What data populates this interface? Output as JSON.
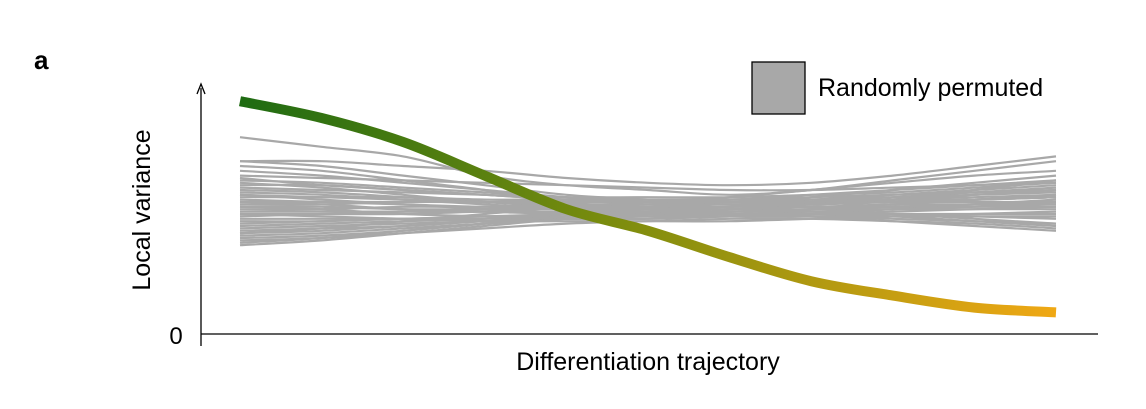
{
  "chart_data": {
    "type": "line",
    "panel_label": "a",
    "xlabel": "Differentiation trajectory",
    "ylabel": "Local variance",
    "y_ticks": [
      {
        "value": 0,
        "label": "0"
      }
    ],
    "xlim": [
      0,
      1
    ],
    "ylim": [
      0,
      1.0
    ],
    "grid": false,
    "legend": {
      "position": "top-right",
      "entries": [
        {
          "label": "Randomly permuted",
          "color": "#a8a8a8"
        }
      ]
    },
    "colors": {
      "permuted": "#a8a8a8",
      "gradient_start": "#1e6b12",
      "gradient_mid": "#7a8c0e",
      "gradient_end": "#f0a814"
    },
    "x": [
      0,
      0.1,
      0.2,
      0.3,
      0.4,
      0.5,
      0.6,
      0.7,
      0.8,
      0.9,
      1.0
    ],
    "series": [
      {
        "role": "observed",
        "values": [
          0.97,
          0.9,
          0.8,
          0.66,
          0.52,
          0.43,
          0.32,
          0.22,
          0.16,
          0.11,
          0.09
        ]
      }
    ],
    "permuted_series": [
      [
        0.82,
        0.78,
        0.74,
        0.66,
        0.62,
        0.6,
        0.58,
        0.6,
        0.64,
        0.68,
        0.72
      ],
      [
        0.72,
        0.72,
        0.7,
        0.68,
        0.65,
        0.63,
        0.62,
        0.63,
        0.66,
        0.7,
        0.74
      ],
      [
        0.72,
        0.7,
        0.66,
        0.62,
        0.58,
        0.56,
        0.55,
        0.57,
        0.6,
        0.63,
        0.66
      ],
      [
        0.7,
        0.68,
        0.64,
        0.6,
        0.55,
        0.52,
        0.5,
        0.52,
        0.56,
        0.6,
        0.64
      ],
      [
        0.68,
        0.66,
        0.63,
        0.6,
        0.57,
        0.55,
        0.55,
        0.56,
        0.58,
        0.6,
        0.62
      ],
      [
        0.66,
        0.65,
        0.64,
        0.63,
        0.62,
        0.61,
        0.6,
        0.6,
        0.61,
        0.62,
        0.63
      ],
      [
        0.65,
        0.62,
        0.6,
        0.58,
        0.56,
        0.55,
        0.54,
        0.55,
        0.56,
        0.58,
        0.6
      ],
      [
        0.64,
        0.63,
        0.61,
        0.59,
        0.57,
        0.56,
        0.56,
        0.58,
        0.6,
        0.62,
        0.64
      ],
      [
        0.63,
        0.61,
        0.58,
        0.55,
        0.53,
        0.52,
        0.52,
        0.54,
        0.56,
        0.58,
        0.6
      ],
      [
        0.62,
        0.62,
        0.6,
        0.58,
        0.56,
        0.55,
        0.55,
        0.56,
        0.57,
        0.58,
        0.59
      ],
      [
        0.61,
        0.6,
        0.59,
        0.58,
        0.57,
        0.57,
        0.57,
        0.58,
        0.59,
        0.61,
        0.63
      ],
      [
        0.6,
        0.59,
        0.57,
        0.55,
        0.54,
        0.53,
        0.53,
        0.55,
        0.57,
        0.59,
        0.61
      ],
      [
        0.59,
        0.58,
        0.56,
        0.54,
        0.52,
        0.51,
        0.51,
        0.52,
        0.54,
        0.56,
        0.58
      ],
      [
        0.58,
        0.57,
        0.56,
        0.55,
        0.55,
        0.55,
        0.56,
        0.57,
        0.58,
        0.59,
        0.6
      ],
      [
        0.58,
        0.56,
        0.54,
        0.52,
        0.5,
        0.49,
        0.49,
        0.5,
        0.52,
        0.54,
        0.56
      ],
      [
        0.57,
        0.57,
        0.57,
        0.56,
        0.56,
        0.55,
        0.55,
        0.55,
        0.56,
        0.57,
        0.58
      ],
      [
        0.56,
        0.55,
        0.54,
        0.53,
        0.53,
        0.53,
        0.53,
        0.54,
        0.55,
        0.56,
        0.57
      ],
      [
        0.55,
        0.55,
        0.55,
        0.55,
        0.54,
        0.54,
        0.54,
        0.55,
        0.55,
        0.56,
        0.57
      ],
      [
        0.55,
        0.54,
        0.52,
        0.51,
        0.5,
        0.5,
        0.5,
        0.51,
        0.52,
        0.53,
        0.54
      ],
      [
        0.54,
        0.54,
        0.55,
        0.55,
        0.56,
        0.56,
        0.56,
        0.56,
        0.55,
        0.55,
        0.55
      ],
      [
        0.53,
        0.53,
        0.52,
        0.52,
        0.52,
        0.52,
        0.53,
        0.53,
        0.54,
        0.54,
        0.55
      ],
      [
        0.53,
        0.52,
        0.5,
        0.49,
        0.48,
        0.48,
        0.49,
        0.5,
        0.51,
        0.52,
        0.53
      ],
      [
        0.52,
        0.52,
        0.53,
        0.53,
        0.54,
        0.54,
        0.55,
        0.55,
        0.56,
        0.56,
        0.57
      ],
      [
        0.51,
        0.51,
        0.51,
        0.51,
        0.51,
        0.51,
        0.51,
        0.52,
        0.52,
        0.52,
        0.52
      ],
      [
        0.5,
        0.5,
        0.5,
        0.51,
        0.51,
        0.52,
        0.52,
        0.53,
        0.53,
        0.54,
        0.54
      ],
      [
        0.5,
        0.49,
        0.48,
        0.47,
        0.47,
        0.47,
        0.47,
        0.48,
        0.49,
        0.5,
        0.51
      ],
      [
        0.49,
        0.5,
        0.51,
        0.52,
        0.53,
        0.53,
        0.54,
        0.54,
        0.55,
        0.56,
        0.57
      ],
      [
        0.48,
        0.48,
        0.48,
        0.49,
        0.49,
        0.5,
        0.5,
        0.5,
        0.5,
        0.5,
        0.5
      ],
      [
        0.47,
        0.47,
        0.48,
        0.49,
        0.5,
        0.51,
        0.52,
        0.52,
        0.53,
        0.53,
        0.53
      ],
      [
        0.46,
        0.47,
        0.48,
        0.48,
        0.49,
        0.49,
        0.49,
        0.49,
        0.48,
        0.47,
        0.46
      ],
      [
        0.45,
        0.46,
        0.47,
        0.48,
        0.5,
        0.51,
        0.52,
        0.53,
        0.53,
        0.54,
        0.54
      ],
      [
        0.44,
        0.45,
        0.46,
        0.47,
        0.48,
        0.48,
        0.49,
        0.49,
        0.49,
        0.49,
        0.49
      ],
      [
        0.43,
        0.44,
        0.45,
        0.47,
        0.48,
        0.5,
        0.51,
        0.52,
        0.53,
        0.54,
        0.55
      ],
      [
        0.42,
        0.43,
        0.45,
        0.47,
        0.49,
        0.5,
        0.5,
        0.5,
        0.49,
        0.47,
        0.45
      ],
      [
        0.41,
        0.42,
        0.44,
        0.46,
        0.48,
        0.49,
        0.5,
        0.5,
        0.5,
        0.49,
        0.48
      ],
      [
        0.4,
        0.41,
        0.43,
        0.46,
        0.49,
        0.51,
        0.53,
        0.54,
        0.55,
        0.56,
        0.57
      ],
      [
        0.39,
        0.4,
        0.42,
        0.44,
        0.46,
        0.47,
        0.48,
        0.48,
        0.47,
        0.46,
        0.44
      ],
      [
        0.38,
        0.4,
        0.43,
        0.46,
        0.49,
        0.5,
        0.5,
        0.49,
        0.47,
        0.45,
        0.43
      ],
      [
        0.37,
        0.39,
        0.42,
        0.45,
        0.48,
        0.5,
        0.51,
        0.51,
        0.5,
        0.48,
        0.46
      ],
      [
        0.42,
        0.44,
        0.47,
        0.5,
        0.53,
        0.55,
        0.57,
        0.6,
        0.63,
        0.66,
        0.68
      ]
    ]
  }
}
